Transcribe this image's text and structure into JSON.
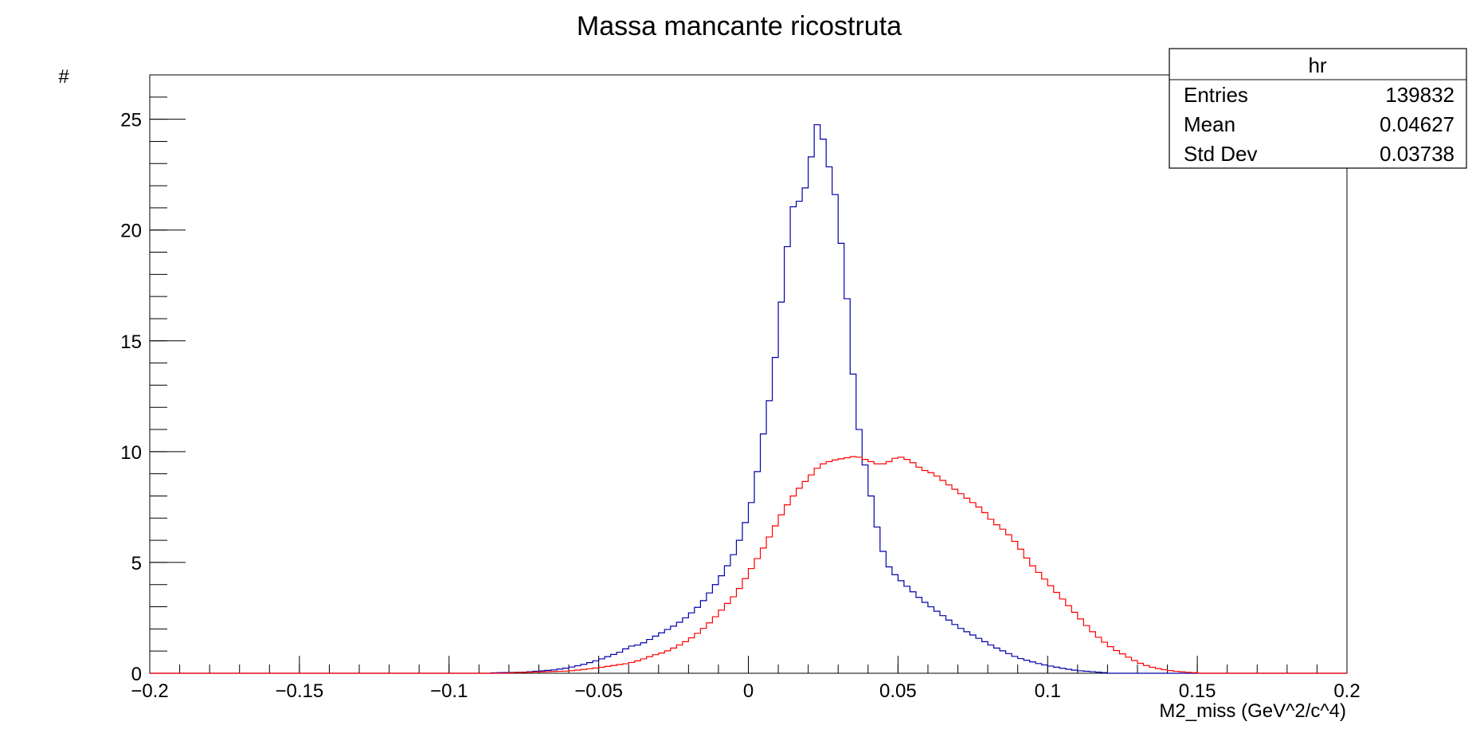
{
  "chart_data": {
    "type": "histogram",
    "title": "Massa mancante ricostruta",
    "xlabel": "M2_miss (GeV^2/c^4)",
    "ylabel": "#",
    "xlim": [
      -0.2,
      0.2
    ],
    "ylim": [
      0,
      27
    ],
    "x_ticks": [
      -0.2,
      -0.15,
      -0.1,
      -0.05,
      0,
      0.05,
      0.1,
      0.15,
      0.2
    ],
    "x_tick_labels": [
      "−0.2",
      "−0.15",
      "−0.1",
      "−0.05",
      "0",
      "0.05",
      "0.1",
      "0.15",
      "0.2"
    ],
    "y_ticks": [
      0,
      5,
      10,
      15,
      20,
      25
    ],
    "y_tick_labels": [
      "0",
      "5",
      "10",
      "15",
      "20",
      "25"
    ],
    "grid": false,
    "bin_width": 0.002,
    "series": [
      {
        "color": "#0000aa",
        "bins": [
          [
            -0.085,
            0.02
          ],
          [
            -0.075,
            0.05
          ],
          [
            -0.07,
            0.1
          ],
          [
            -0.065,
            0.15
          ],
          [
            -0.06,
            0.25
          ],
          [
            -0.055,
            0.4
          ],
          [
            -0.05,
            0.6
          ],
          [
            -0.046,
            0.8
          ],
          [
            -0.042,
            1.0
          ],
          [
            -0.04,
            1.2
          ],
          [
            -0.036,
            1.3
          ],
          [
            -0.032,
            1.6
          ],
          [
            -0.028,
            1.9
          ],
          [
            -0.024,
            2.2
          ],
          [
            -0.02,
            2.6
          ],
          [
            -0.016,
            3.1
          ],
          [
            -0.012,
            3.8
          ],
          [
            -0.008,
            4.6
          ],
          [
            -0.004,
            5.6
          ],
          [
            0.0,
            7.2
          ],
          [
            0.002,
            8.2
          ],
          [
            0.004,
            10.0
          ],
          [
            0.006,
            11.6
          ],
          [
            0.008,
            13.0
          ],
          [
            0.01,
            15.5
          ],
          [
            0.012,
            18.0
          ],
          [
            0.014,
            20.5
          ],
          [
            0.016,
            21.6
          ],
          [
            0.018,
            21.0
          ],
          [
            0.02,
            22.8
          ],
          [
            0.022,
            23.8
          ],
          [
            0.024,
            25.7
          ],
          [
            0.026,
            22.5
          ],
          [
            0.028,
            23.2
          ],
          [
            0.03,
            20.0
          ],
          [
            0.032,
            18.8
          ],
          [
            0.034,
            15.0
          ],
          [
            0.036,
            12.0
          ],
          [
            0.038,
            10.0
          ],
          [
            0.04,
            8.8
          ],
          [
            0.042,
            7.2
          ],
          [
            0.044,
            6.0
          ],
          [
            0.046,
            5.0
          ],
          [
            0.048,
            4.6
          ],
          [
            0.05,
            4.3
          ],
          [
            0.054,
            3.8
          ],
          [
            0.058,
            3.3
          ],
          [
            0.062,
            2.9
          ],
          [
            0.066,
            2.5
          ],
          [
            0.07,
            2.1
          ],
          [
            0.074,
            1.8
          ],
          [
            0.078,
            1.5
          ],
          [
            0.082,
            1.2
          ],
          [
            0.086,
            0.95
          ],
          [
            0.09,
            0.7
          ],
          [
            0.094,
            0.55
          ],
          [
            0.098,
            0.4
          ],
          [
            0.102,
            0.3
          ],
          [
            0.106,
            0.2
          ],
          [
            0.11,
            0.12
          ],
          [
            0.116,
            0.06
          ],
          [
            0.12,
            0.02
          ]
        ]
      },
      {
        "color": "#ff0000",
        "bins": [
          [
            -0.08,
            0.02
          ],
          [
            -0.06,
            0.1
          ],
          [
            -0.05,
            0.25
          ],
          [
            -0.04,
            0.45
          ],
          [
            -0.036,
            0.6
          ],
          [
            -0.032,
            0.8
          ],
          [
            -0.028,
            0.95
          ],
          [
            -0.024,
            1.2
          ],
          [
            -0.02,
            1.5
          ],
          [
            -0.016,
            1.9
          ],
          [
            -0.012,
            2.4
          ],
          [
            -0.008,
            3.0
          ],
          [
            -0.004,
            3.6
          ],
          [
            0.0,
            4.5
          ],
          [
            0.004,
            5.4
          ],
          [
            0.008,
            6.4
          ],
          [
            0.012,
            7.4
          ],
          [
            0.016,
            8.2
          ],
          [
            0.02,
            8.8
          ],
          [
            0.024,
            9.4
          ],
          [
            0.028,
            9.6
          ],
          [
            0.032,
            9.7
          ],
          [
            0.036,
            9.8
          ],
          [
            0.04,
            9.6
          ],
          [
            0.044,
            9.4
          ],
          [
            0.048,
            9.6
          ],
          [
            0.05,
            9.8
          ],
          [
            0.054,
            9.6
          ],
          [
            0.058,
            9.2
          ],
          [
            0.062,
            9.0
          ],
          [
            0.066,
            8.6
          ],
          [
            0.07,
            8.2
          ],
          [
            0.074,
            7.8
          ],
          [
            0.078,
            7.4
          ],
          [
            0.082,
            6.8
          ],
          [
            0.086,
            6.4
          ],
          [
            0.09,
            5.8
          ],
          [
            0.094,
            5.0
          ],
          [
            0.098,
            4.4
          ],
          [
            0.102,
            3.8
          ],
          [
            0.106,
            3.2
          ],
          [
            0.11,
            2.6
          ],
          [
            0.114,
            2.0
          ],
          [
            0.118,
            1.5
          ],
          [
            0.122,
            1.1
          ],
          [
            0.126,
            0.8
          ],
          [
            0.13,
            0.5
          ],
          [
            0.134,
            0.3
          ],
          [
            0.138,
            0.18
          ],
          [
            0.142,
            0.1
          ],
          [
            0.146,
            0.05
          ],
          [
            0.15,
            0.02
          ]
        ]
      }
    ]
  },
  "stats_box": {
    "name": "hr",
    "rows": [
      {
        "label": "Entries",
        "value": "139832"
      },
      {
        "label": "Mean",
        "value": "0.04627"
      },
      {
        "label": "Std Dev",
        "value": "0.03738"
      }
    ]
  }
}
